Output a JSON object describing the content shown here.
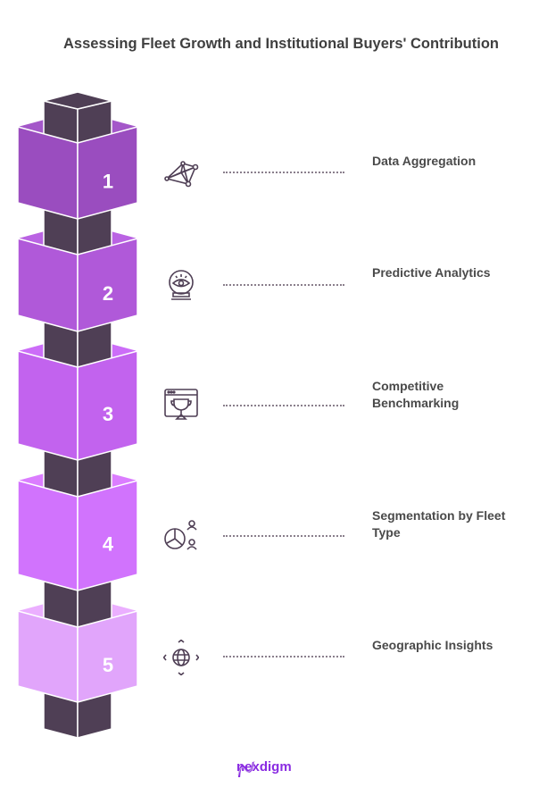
{
  "title": "Assessing Fleet Growth and Institutional Buyers' Contribution",
  "steps": [
    {
      "number": "1",
      "label": "Data Aggregation",
      "icon": "network-icon",
      "color": "#9a4dbf"
    },
    {
      "number": "2",
      "label": "Predictive Analytics",
      "icon": "crystal-ball-eye-icon",
      "color": "#b059d9"
    },
    {
      "number": "3",
      "label": "Competitive Benchmarking",
      "icon": "trophy-browser-icon",
      "color": "#c263ee"
    },
    {
      "number": "4",
      "label": "Segmentation by Fleet Type",
      "icon": "pie-chart-users-icon",
      "color": "#d173fd"
    },
    {
      "number": "5",
      "label": "Geographic Insights",
      "icon": "globe-arrows-icon",
      "color": "#e1a5fb"
    }
  ],
  "column_color": "#4f3f55",
  "logo": {
    "text": "nexdigm",
    "color": "#8a2be2"
  }
}
